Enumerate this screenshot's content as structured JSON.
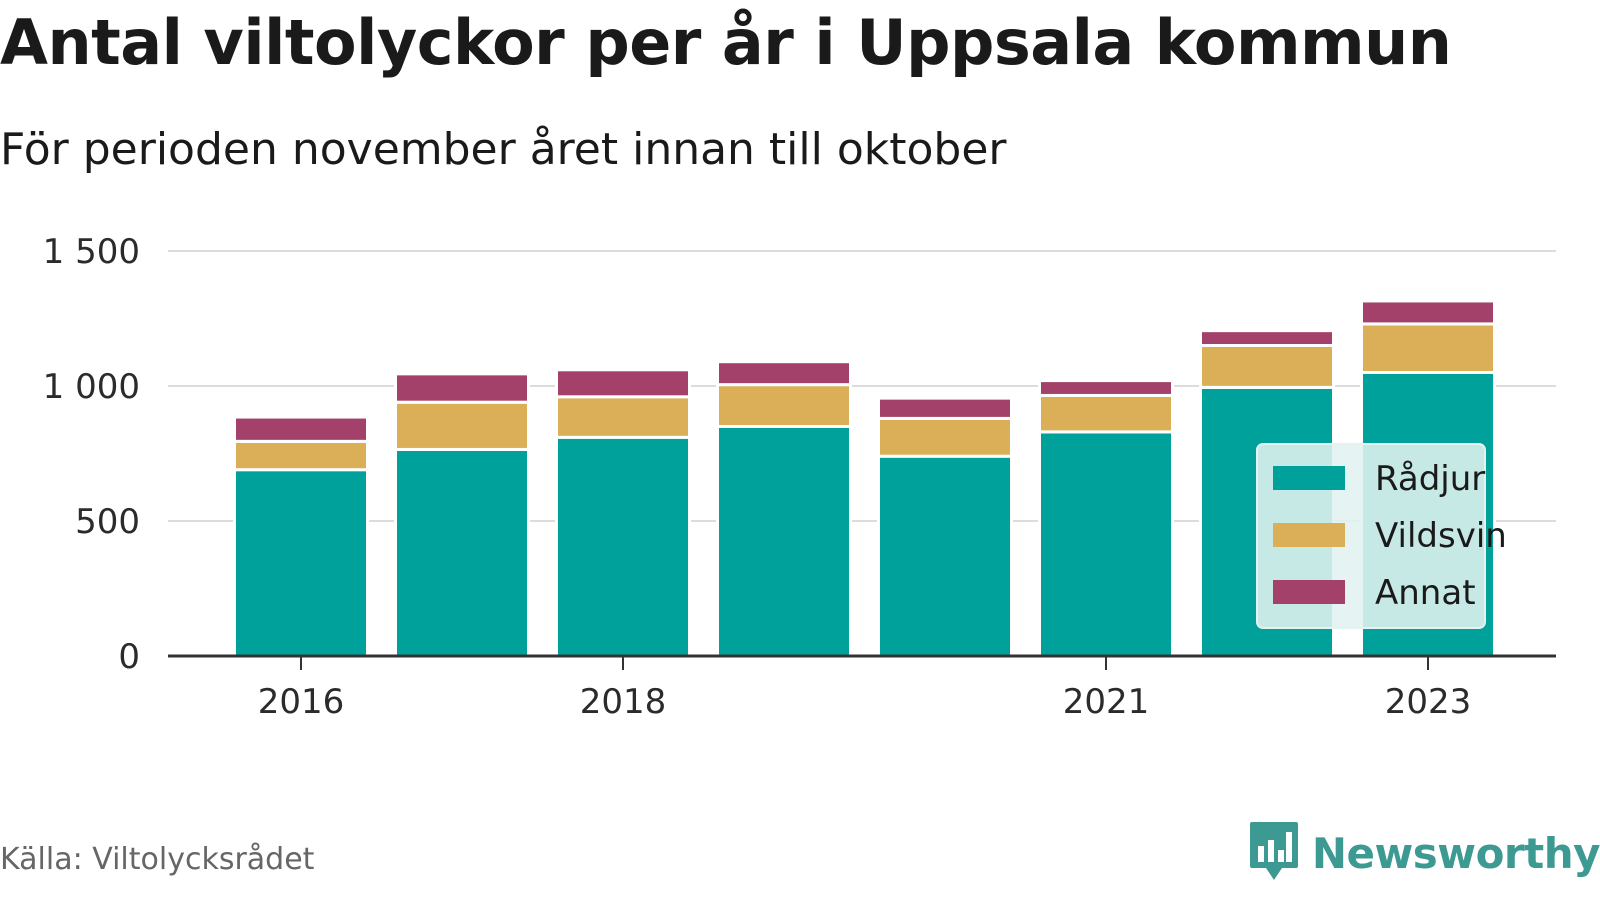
{
  "chart_data": {
    "type": "bar",
    "stacked": true,
    "title": "Antal viltolyckor per år i Uppsala kommun",
    "subtitle": "För perioden november året innan till oktober",
    "categories": [
      "2016",
      "2017",
      "2018",
      "2019",
      "2020",
      "2021",
      "2022",
      "2023"
    ],
    "x_tick_labels": [
      "2016",
      "2018",
      "2021",
      "2023"
    ],
    "series": [
      {
        "name": "Rådjur",
        "color": "#00a19a",
        "values": [
          690,
          765,
          810,
          850,
          740,
          830,
          995,
          1050
        ]
      },
      {
        "name": "Vildsvin",
        "color": "#dbae58",
        "values": [
          105,
          175,
          150,
          155,
          140,
          135,
          155,
          180
        ]
      },
      {
        "name": "Annat",
        "color": "#a3416b",
        "values": [
          90,
          105,
          100,
          85,
          75,
          55,
          55,
          85
        ]
      }
    ],
    "ylim": [
      0,
      1500
    ],
    "yticks": [
      0,
      500,
      1000,
      1500
    ],
    "ytick_labels": [
      "0",
      "500",
      "1 000",
      "1 500"
    ],
    "grid": true,
    "legend": {
      "position": "right",
      "items": [
        "Rådjur",
        "Vildsvin",
        "Annat"
      ]
    }
  },
  "footer": {
    "source": "Källa: Viltolycksrådet",
    "brand": "Newsworthy",
    "brand_icon": "bar-chart-speech-icon"
  }
}
